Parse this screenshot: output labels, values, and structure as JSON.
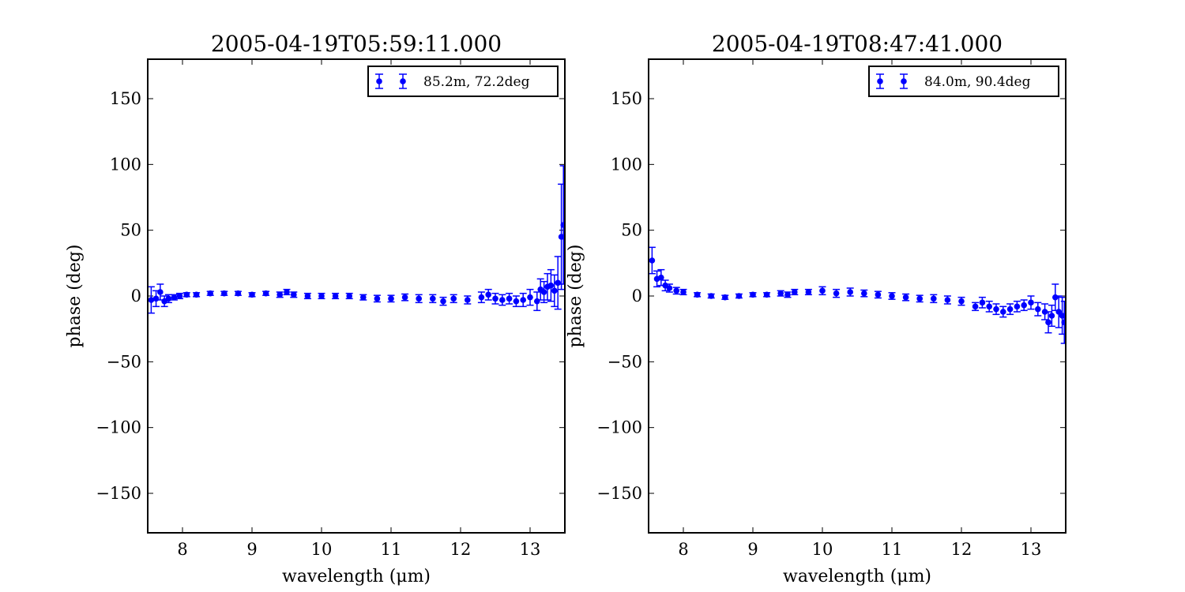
{
  "chart_data": [
    {
      "type": "scatter",
      "title": "2005-04-19T05:59:11.000",
      "xlabel": "wavelength (μm)",
      "ylabel": "phase (deg)",
      "xlim": [
        7.5,
        13.5
      ],
      "ylim": [
        -180,
        180
      ],
      "xticks": [
        8,
        9,
        10,
        11,
        12,
        13
      ],
      "yticks": [
        150,
        100,
        50,
        0,
        -50,
        -100,
        -150
      ],
      "ytick_labels": [
        "150",
        "100",
        "50",
        "0",
        "−50",
        "−100",
        "−150"
      ],
      "grid": false,
      "legend_position": "top-right",
      "color": "#0000ff",
      "series": [
        {
          "name": "85.2m, 72.2deg",
          "x": [
            7.55,
            7.62,
            7.68,
            7.74,
            7.8,
            7.88,
            7.96,
            8.06,
            8.2,
            8.4,
            8.6,
            8.8,
            9.0,
            9.2,
            9.4,
            9.5,
            9.6,
            9.8,
            10.0,
            10.2,
            10.4,
            10.6,
            10.8,
            11.0,
            11.2,
            11.4,
            11.6,
            11.75,
            11.9,
            12.1,
            12.3,
            12.4,
            12.5,
            12.6,
            12.7,
            12.8,
            12.9,
            13.0,
            13.1,
            13.15,
            13.2,
            13.25,
            13.3,
            13.35,
            13.4,
            13.45,
            13.48
          ],
          "y": [
            -3,
            -2,
            3,
            -4,
            -2,
            -1,
            0,
            1,
            1,
            2,
            2,
            2,
            1,
            2,
            1,
            3,
            1,
            0,
            0,
            0,
            0,
            -1,
            -2,
            -2,
            -1,
            -2,
            -2,
            -4,
            -2,
            -3,
            -1,
            1,
            -2,
            -3,
            -2,
            -4,
            -3,
            -1,
            -4,
            5,
            3,
            7,
            8,
            4,
            10,
            45,
            54
          ],
          "yerr": [
            10,
            6,
            6,
            4,
            3,
            2,
            2,
            1.5,
            1.5,
            1.5,
            1.5,
            1.5,
            1.5,
            1.5,
            2,
            2,
            2,
            2,
            2,
            2,
            2,
            2,
            2.5,
            2.5,
            2.5,
            3,
            3,
            3,
            3,
            3,
            4,
            4,
            4,
            4,
            4,
            4,
            5,
            6,
            7,
            8,
            8,
            10,
            12,
            12,
            20,
            40,
            45
          ]
        }
      ]
    },
    {
      "type": "scatter",
      "title": "2005-04-19T08:47:41.000",
      "xlabel": "wavelength (μm)",
      "ylabel": "phase (deg)",
      "xlim": [
        7.5,
        13.5
      ],
      "ylim": [
        -180,
        180
      ],
      "xticks": [
        8,
        9,
        10,
        11,
        12,
        13
      ],
      "yticks": [
        150,
        100,
        50,
        0,
        -50,
        -100,
        -150
      ],
      "ytick_labels": [
        "150",
        "100",
        "50",
        "0",
        "−50",
        "−100",
        "−150"
      ],
      "grid": false,
      "legend_position": "top-right",
      "color": "#0000ff",
      "series": [
        {
          "name": "84.0m, 90.4deg",
          "x": [
            7.55,
            7.62,
            7.68,
            7.74,
            7.8,
            7.9,
            8.0,
            8.2,
            8.4,
            8.6,
            8.8,
            9.0,
            9.2,
            9.4,
            9.5,
            9.6,
            9.8,
            10.0,
            10.2,
            10.4,
            10.6,
            10.8,
            11.0,
            11.2,
            11.4,
            11.6,
            11.8,
            12.0,
            12.2,
            12.3,
            12.4,
            12.5,
            12.6,
            12.7,
            12.8,
            12.9,
            13.0,
            13.1,
            13.2,
            13.25,
            13.3,
            13.35,
            13.4,
            13.45,
            13.48
          ],
          "y": [
            27,
            13,
            14,
            8,
            6,
            4,
            3,
            1,
            0,
            -1,
            0,
            1,
            1,
            2,
            1,
            3,
            3,
            4,
            2,
            3,
            2,
            1,
            0,
            -1,
            -2,
            -2,
            -3,
            -4,
            -8,
            -5,
            -8,
            -10,
            -12,
            -10,
            -8,
            -7,
            -5,
            -10,
            -12,
            -20,
            -15,
            -1,
            -12,
            -15,
            -20
          ],
          "yerr": [
            10,
            6,
            6,
            4,
            3,
            2.5,
            2,
            1.5,
            1.5,
            1.5,
            1.5,
            1.5,
            1.5,
            2,
            2,
            2,
            2,
            3,
            3,
            3,
            2.5,
            2.5,
            2.5,
            2.5,
            2.5,
            3,
            3,
            3,
            3,
            4,
            4,
            4,
            4,
            4,
            4,
            4,
            5,
            5,
            6,
            8,
            8,
            10,
            12,
            14,
            16
          ]
        }
      ]
    }
  ]
}
